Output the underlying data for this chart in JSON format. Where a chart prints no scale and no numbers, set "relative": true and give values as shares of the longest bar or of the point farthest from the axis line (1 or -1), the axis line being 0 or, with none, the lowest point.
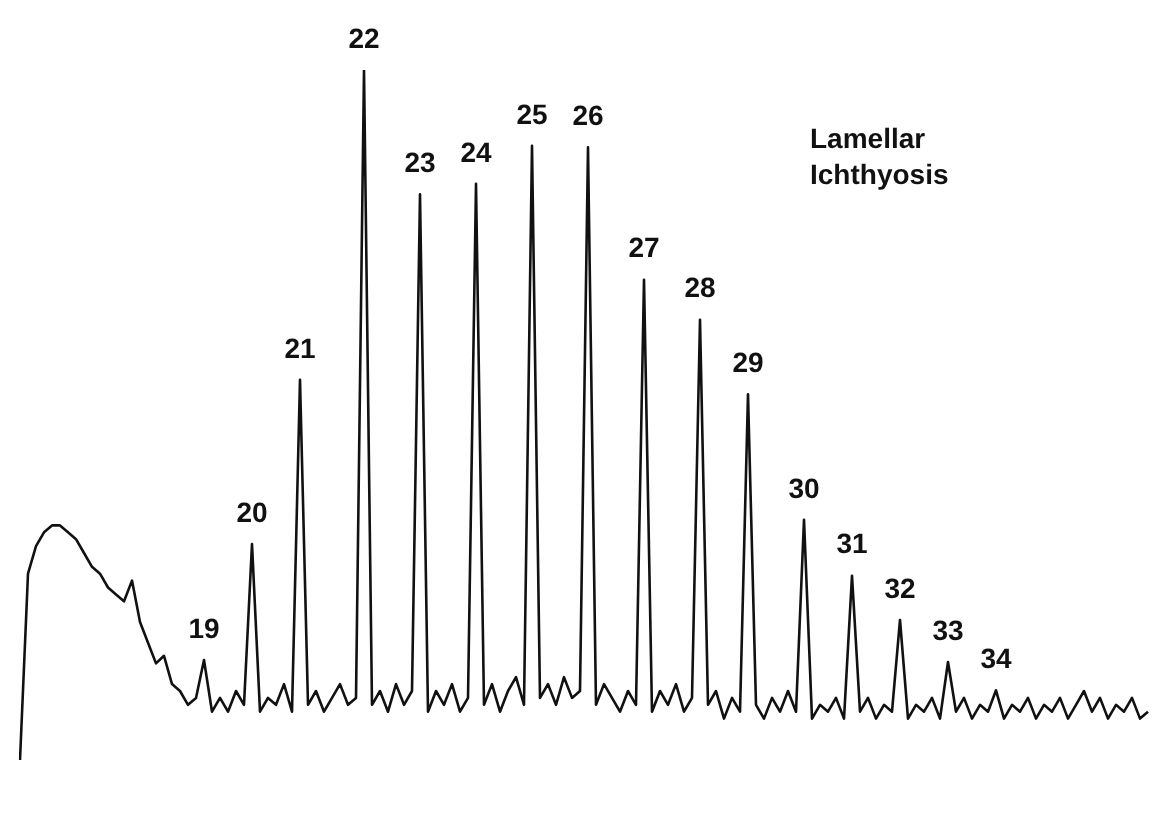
{
  "chart_data": {
    "type": "line",
    "relative": true,
    "marker": "none",
    "color": "#111111",
    "categories": [
      null,
      null,
      null,
      null,
      null,
      null,
      null,
      null,
      null,
      null,
      null,
      null,
      null,
      null,
      null,
      null,
      null,
      null,
      null,
      null,
      null,
      null,
      null,
      null,
      null,
      null,
      null,
      null,
      null,
      null,
      null,
      null,
      null,
      null,
      null,
      null,
      null,
      null,
      null,
      null,
      null,
      null,
      null,
      null,
      null,
      null,
      null,
      null,
      null,
      null,
      null,
      null,
      null,
      null,
      null,
      null,
      null,
      null,
      null,
      null,
      null,
      null,
      null,
      null,
      null,
      null,
      null,
      null,
      null,
      null,
      null,
      null,
      null,
      null,
      null,
      null,
      null,
      null,
      null,
      null,
      null,
      null,
      null,
      null,
      null,
      null,
      null,
      null,
      null,
      null,
      null,
      null,
      null,
      null,
      null,
      null,
      null,
      null,
      null,
      null,
      null,
      null,
      null,
      null,
      null,
      null,
      null,
      null,
      null,
      null,
      null,
      null,
      null,
      null,
      null,
      null,
      null,
      null,
      null,
      null,
      null,
      null,
      null,
      null,
      null,
      null,
      null,
      null,
      null,
      null,
      null,
      null,
      null,
      null,
      null,
      null,
      null,
      null,
      null,
      null,
      null,
      null
    ],
    "values": [
      0,
      0.27,
      0.31,
      0.33,
      0.34,
      0.34,
      0.33,
      0.32,
      0.3,
      0.28,
      0.27,
      0.25,
      0.24,
      0.23,
      0.26,
      0.2,
      0.17,
      0.14,
      0.151,
      0.11,
      0.1,
      0.08,
      0.09,
      0.145,
      0.07,
      0.09,
      0.07,
      0.1,
      0.08,
      0.313,
      0.07,
      0.09,
      0.08,
      0.11,
      0.07,
      0.551,
      0.08,
      0.1,
      0.07,
      0.09,
      0.11,
      0.08,
      0.09,
      1,
      0.08,
      0.1,
      0.07,
      0.11,
      0.08,
      0.1,
      0.82,
      0.07,
      0.1,
      0.08,
      0.11,
      0.07,
      0.09,
      0.835,
      0.08,
      0.11,
      0.07,
      0.1,
      0.12,
      0.08,
      0.89,
      0.09,
      0.11,
      0.08,
      0.12,
      0.09,
      0.1,
      0.888,
      0.08,
      0.11,
      0.09,
      0.07,
      0.1,
      0.08,
      0.696,
      0.07,
      0.1,
      0.08,
      0.11,
      0.07,
      0.09,
      0.638,
      0.08,
      0.1,
      0.06,
      0.09,
      0.07,
      0.53,
      0.08,
      0.06,
      0.09,
      0.07,
      0.1,
      0.07,
      0.348,
      0.06,
      0.08,
      0.07,
      0.09,
      0.06,
      0.267,
      0.07,
      0.09,
      0.06,
      0.08,
      0.07,
      0.203,
      0.06,
      0.08,
      0.07,
      0.09,
      0.06,
      0.142,
      0.07,
      0.09,
      0.06,
      0.08,
      0.07,
      0.101,
      0.06,
      0.08,
      0.07,
      0.09,
      0.06,
      0.08,
      0.07,
      0.09,
      0.06,
      0.08,
      0.1,
      0.07,
      0.09,
      0.06,
      0.08,
      0.07,
      0.09,
      0.06,
      0.07
    ],
    "annotations": [
      "Lamellar Ichthyosis",
      {
        "text": "19",
        "y": 0.145
      },
      {
        "text": "20",
        "y": 0.313
      },
      {
        "text": "21",
        "y": 0.551
      },
      {
        "text": "22",
        "y": 1
      },
      {
        "text": "23",
        "y": 0.82
      },
      {
        "text": "24",
        "y": 0.835
      },
      {
        "text": "25",
        "y": 0.89
      },
      {
        "text": "26",
        "y": 0.888
      },
      {
        "text": "27",
        "y": 0.696
      },
      {
        "text": "28",
        "y": 0.638
      },
      {
        "text": "29",
        "y": 0.53
      },
      {
        "text": "30",
        "y": 0.348
      },
      {
        "text": "31",
        "y": 0.267
      },
      {
        "text": "32",
        "y": 0.203
      },
      {
        "text": "33",
        "y": 0.142
      },
      {
        "text": "34",
        "y": 0.101
      }
    ]
  }
}
